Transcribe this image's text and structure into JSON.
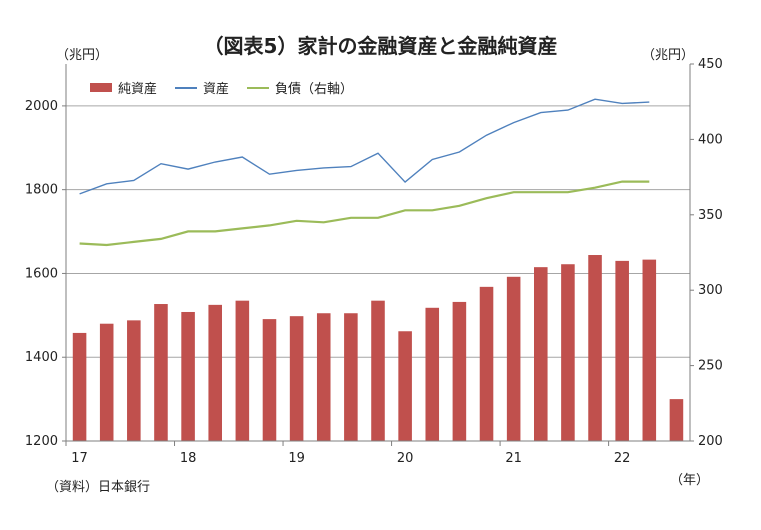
{
  "header": {
    "title": "（図表5）家計の金融資産と金融純資産",
    "left_unit": "（兆円）",
    "right_unit": "（兆円）"
  },
  "footer": {
    "source": "（資料）日本銀行",
    "x_unit": "（年）"
  },
  "colors": {
    "net_assets": "#c0504d",
    "assets": "#4f81bd",
    "liabilities": "#9bbb59",
    "grid": "#a6a6a6",
    "axis": "#7f7f7f"
  },
  "chart_data": {
    "type": "bar",
    "title": "（図表5）家計の金融資産と金融純資産",
    "x_tick_labels": [
      "17",
      "18",
      "19",
      "20",
      "21",
      "22"
    ],
    "x_tick_start_index": [
      0,
      4,
      8,
      12,
      16,
      20
    ],
    "y_left": {
      "min": 1200,
      "max": 2100,
      "ticks": [
        1200,
        1400,
        1600,
        1800,
        2000
      ]
    },
    "y_right": {
      "min": 200,
      "max": 450,
      "ticks": [
        200,
        250,
        300,
        350,
        400,
        450
      ]
    },
    "grid_lines_left": [
      1200,
      1400,
      1600,
      1800,
      2000
    ],
    "categories": [
      "2017Q1",
      "2017Q2",
      "2017Q3",
      "2017Q4",
      "2018Q1",
      "2018Q2",
      "2018Q3",
      "2018Q4",
      "2019Q1",
      "2019Q2",
      "2019Q3",
      "2019Q4",
      "2020Q1",
      "2020Q2",
      "2020Q3",
      "2020Q4",
      "2021Q1",
      "2021Q2",
      "2021Q3",
      "2021Q4",
      "2022Q1",
      "2022Q2",
      "2022Q3"
    ],
    "series": [
      {
        "name": "純資産",
        "kind": "bar",
        "axis": "left",
        "values": [
          1458,
          1480,
          1488,
          1527,
          1508,
          1525,
          1535,
          1491,
          1498,
          1505,
          1505,
          1535,
          1462,
          1518,
          1532,
          1568,
          1592,
          1615,
          1622,
          1644,
          1630,
          1633,
          1300
        ]
      },
      {
        "name": "資産",
        "kind": "line",
        "axis": "left",
        "values": [
          1790,
          1814,
          1822,
          1862,
          1849,
          1866,
          1878,
          1837,
          1846,
          1852,
          1855,
          1887,
          1818,
          1872,
          1890,
          1930,
          1960,
          1984,
          1990,
          2016,
          2006,
          2009,
          null
        ]
      },
      {
        "name": "負債（右軸）",
        "kind": "line",
        "axis": "right",
        "values": [
          331,
          330,
          332,
          334,
          339,
          339,
          341,
          343,
          346,
          345,
          348,
          348,
          353,
          353,
          356,
          361,
          365,
          365,
          365,
          368,
          372,
          372,
          null
        ]
      }
    ],
    "legend": "top-left",
    "grid": true
  }
}
